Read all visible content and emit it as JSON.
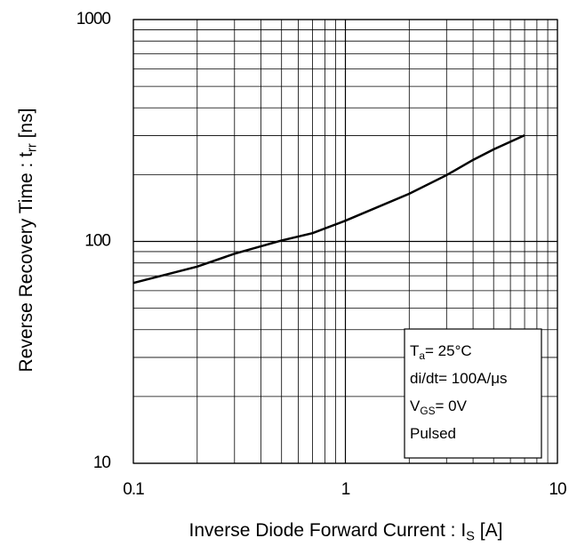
{
  "chart_data": {
    "type": "line",
    "x_title": {
      "text": "Inverse Diode Forward Current : I",
      "sub": "S",
      "after": " [A]"
    },
    "y_title": {
      "text": "Reverse Recovery Time : t",
      "sub": "rr",
      "after": " [ns]"
    },
    "xscale": "log",
    "yscale": "log",
    "xlim": [
      0.1,
      10
    ],
    "ylim": [
      10,
      1000
    ],
    "xticks": [
      0.1,
      1,
      10
    ],
    "yticks": [
      10,
      100,
      1000
    ],
    "minor_xticks": [
      0.2,
      0.3,
      0.4,
      0.5,
      0.6,
      0.7,
      0.8,
      0.9,
      2,
      3,
      4,
      5,
      6,
      7,
      8,
      9
    ],
    "minor_yticks": [
      20,
      30,
      40,
      50,
      60,
      70,
      80,
      90,
      200,
      300,
      400,
      500,
      600,
      700,
      800,
      900
    ],
    "grid": true,
    "series": [
      {
        "color": "#000000",
        "x": [
          0.1,
          0.2,
          0.3,
          0.5,
          0.7,
          1,
          2,
          3,
          4,
          5,
          7
        ],
        "values": [
          65,
          77,
          88,
          101,
          109,
          124,
          164,
          199,
          233,
          260,
          301
        ]
      }
    ],
    "annotations": [
      {
        "text": "T",
        "sub": "a",
        "after": "= 25°C"
      },
      {
        "text": "di/dt= 100A/μs"
      },
      {
        "text": "V",
        "sub": "GS",
        "after": "= 0V"
      },
      {
        "text": "Pulsed"
      }
    ]
  }
}
